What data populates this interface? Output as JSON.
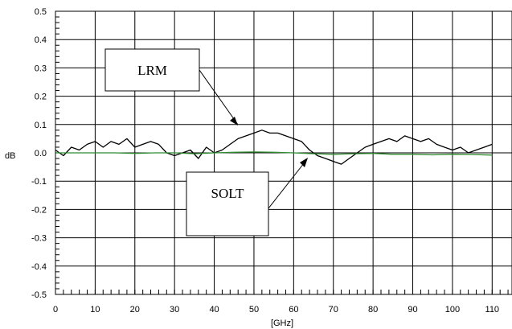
{
  "chart_data": {
    "type": "line",
    "title": "",
    "xlabel": "[GHz]",
    "ylabel": "dB",
    "xlim": [
      0,
      115
    ],
    "ylim": [
      -0.5,
      0.5
    ],
    "grid": true,
    "x_ticks": [
      0,
      10,
      20,
      30,
      40,
      50,
      60,
      70,
      80,
      90,
      100,
      110
    ],
    "y_ticks": [
      -0.5,
      -0.4,
      -0.3,
      -0.2,
      -0.1,
      0.0,
      0.1,
      0.2,
      0.3,
      0.4,
      0.5
    ],
    "x_tick_labels": [
      "0",
      "10",
      "20",
      "30",
      "40",
      "50",
      "60",
      "70",
      "80",
      "90",
      "100",
      "110"
    ],
    "y_tick_labels": [
      "-0.5",
      "-0.4",
      "-0.3",
      "-0.2",
      "-0.1",
      "0.0",
      "0.1",
      "0.2",
      "0.3",
      "0.4",
      "0.5"
    ],
    "series": [
      {
        "name": "LRM",
        "color": "#000000",
        "x": [
          0,
          2,
          4,
          6,
          8,
          10,
          12,
          14,
          16,
          18,
          20,
          22,
          24,
          26,
          28,
          30,
          32,
          34,
          36,
          38,
          40,
          42,
          44,
          46,
          48,
          50,
          52,
          54,
          56,
          58,
          60,
          62,
          64,
          66,
          68,
          70,
          72,
          74,
          76,
          78,
          80,
          82,
          84,
          86,
          88,
          90,
          92,
          94,
          96,
          98,
          100,
          102,
          104,
          106,
          108,
          110
        ],
        "y": [
          0.01,
          -0.01,
          0.02,
          0.01,
          0.03,
          0.04,
          0.02,
          0.04,
          0.03,
          0.05,
          0.02,
          0.03,
          0.04,
          0.03,
          0.0,
          -0.01,
          0.0,
          0.01,
          -0.02,
          0.02,
          0.0,
          0.01,
          0.03,
          0.05,
          0.06,
          0.07,
          0.08,
          0.07,
          0.07,
          0.06,
          0.05,
          0.04,
          0.01,
          -0.01,
          -0.02,
          -0.03,
          -0.04,
          -0.02,
          0.0,
          0.02,
          0.03,
          0.04,
          0.05,
          0.04,
          0.06,
          0.05,
          0.04,
          0.05,
          0.03,
          0.02,
          0.01,
          0.02,
          0.0,
          0.01,
          0.02,
          0.03
        ]
      },
      {
        "name": "SOLT",
        "color": "#2e8b2e",
        "x": [
          0,
          5,
          10,
          15,
          20,
          25,
          30,
          35,
          40,
          45,
          50,
          55,
          60,
          65,
          70,
          75,
          80,
          85,
          90,
          95,
          100,
          105,
          110
        ],
        "y": [
          0.0,
          0.0,
          0.0,
          0.0,
          -0.002,
          0.0,
          0.0,
          -0.003,
          0.0,
          0.002,
          0.003,
          0.002,
          0.0,
          -0.003,
          -0.005,
          -0.003,
          -0.002,
          -0.005,
          -0.005,
          -0.007,
          -0.005,
          -0.006,
          -0.008
        ]
      }
    ],
    "annotations": [
      {
        "text": "LRM",
        "target_series": "LRM",
        "target": [
          50,
          0.08
        ]
      },
      {
        "text": "SOLT",
        "target_series": "SOLT",
        "target": [
          65,
          0.0
        ]
      }
    ]
  }
}
